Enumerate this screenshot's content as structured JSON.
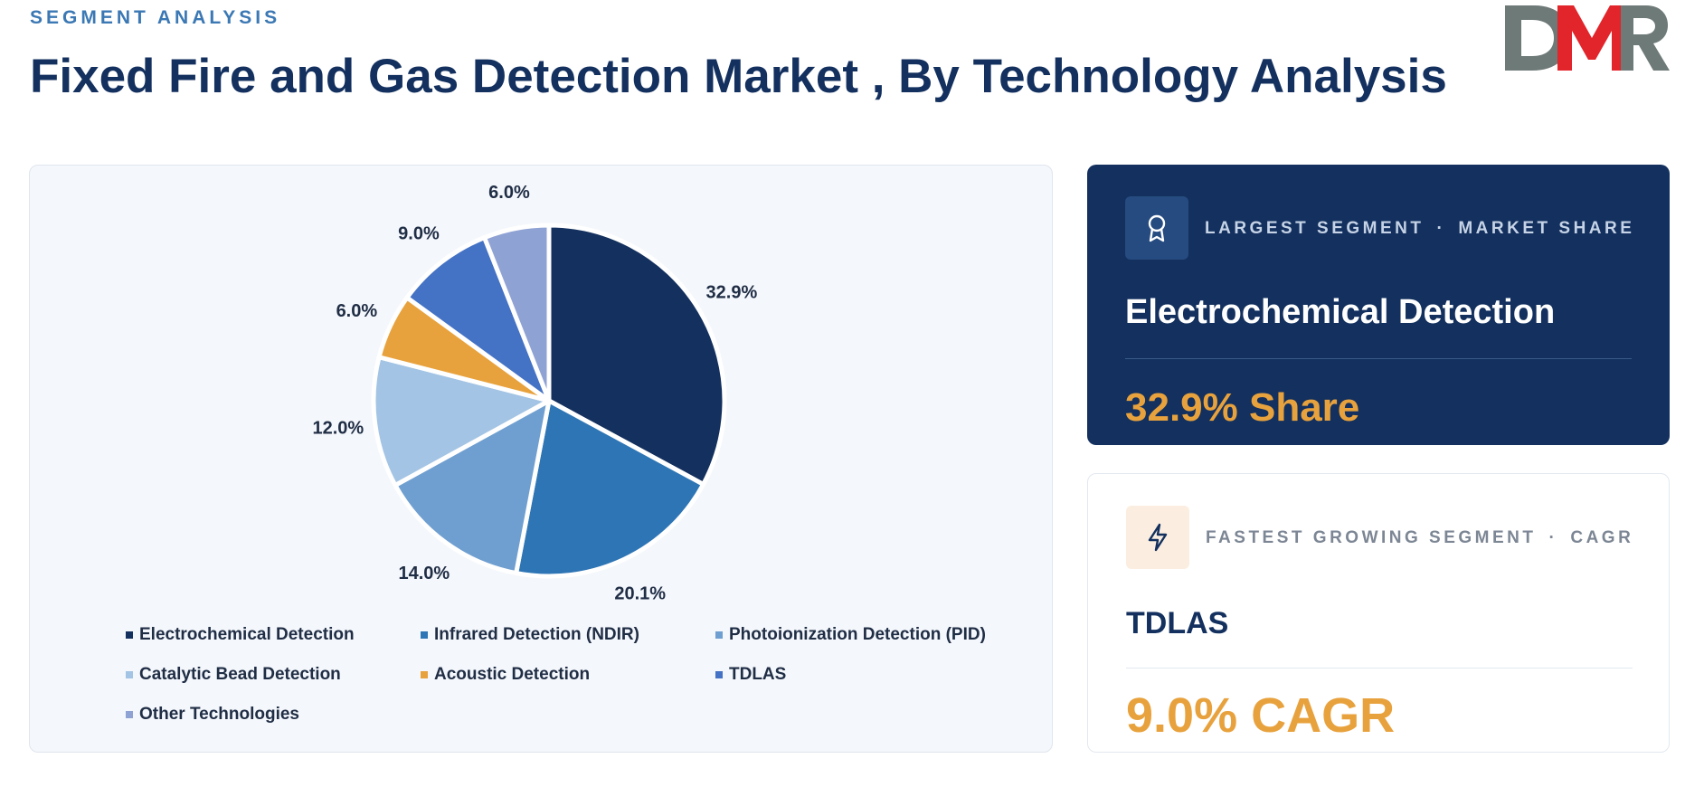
{
  "header": {
    "eyebrow": "SEGMENT ANALYSIS",
    "title": "Fixed Fire and Gas Detection Market , By Technology Analysis",
    "logo_text": "DMR"
  },
  "colors": {
    "title": "#13305e",
    "accent": "#e8a23d",
    "logo_grey": "#6e7a78",
    "logo_red": "#e2242b"
  },
  "chart_data": {
    "type": "pie",
    "title": "",
    "categories": [
      "Electrochemical Detection",
      "Infrared Detection (NDIR)",
      "Photoionization Detection (PID)",
      "Catalytic Bead Detection",
      "Acoustic Detection",
      "TDLAS",
      "Other Technologies"
    ],
    "values": [
      32.9,
      20.1,
      14.0,
      12.0,
      6.0,
      9.0,
      6.0
    ],
    "labels": [
      "32.9%",
      "20.1%",
      "14.0%",
      "12.0%",
      "6.0%",
      "9.0%",
      "6.0%"
    ],
    "colors": [
      "#13305e",
      "#2e75b5",
      "#6f9fd0",
      "#a3c4e4",
      "#e8a23d",
      "#4472c4",
      "#8fa2d4"
    ],
    "legend_position": "bottom"
  },
  "cards": {
    "largest": {
      "icon": "award-icon",
      "kicker_left": "LARGEST SEGMENT",
      "separator": "·",
      "kicker_right": "MARKET SHARE",
      "name": "Electrochemical Detection",
      "value": "32.9% Share"
    },
    "fastest": {
      "icon": "lightning-icon",
      "kicker_left": "FASTEST GROWING SEGMENT",
      "separator": "·",
      "kicker_right": "CAGR",
      "name": "TDLAS",
      "value": "9.0% CAGR"
    }
  }
}
